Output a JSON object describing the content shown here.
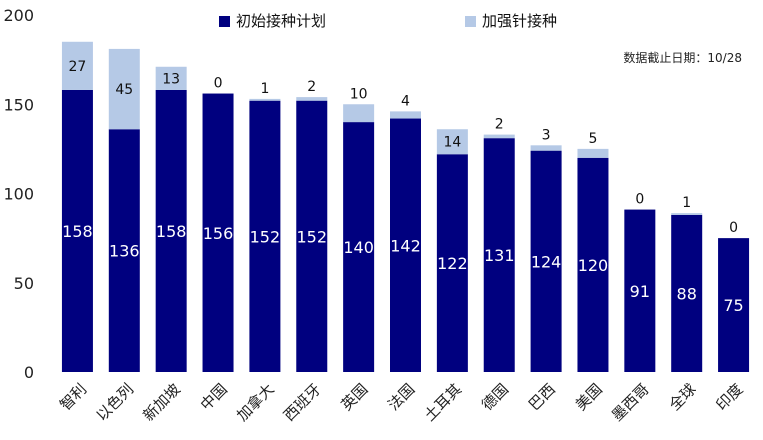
{
  "chart_data": {
    "type": "bar",
    "stacked": true,
    "title": "",
    "xlabel": "",
    "ylabel": "",
    "categories": [
      "智利",
      "以色列",
      "新加坡",
      "中国",
      "加拿大",
      "西班牙",
      "英国",
      "法国",
      "土耳其",
      "德国",
      "巴西",
      "美国",
      "墨西哥",
      "全球",
      "印度"
    ],
    "series": [
      {
        "name": "初始接种计划",
        "color": "#00007f",
        "values": [
          158,
          136,
          158,
          156,
          152,
          152,
          140,
          142,
          122,
          131,
          124,
          120,
          91,
          88,
          75
        ]
      },
      {
        "name": "加强针接种",
        "color": "#b5c9e6",
        "values": [
          27,
          45,
          13,
          0,
          1,
          2,
          10,
          4,
          14,
          2,
          3,
          5,
          0,
          1,
          0
        ]
      }
    ],
    "y_ticks": [
      0,
      50,
      100,
      150,
      200
    ],
    "ylim": [
      0,
      200
    ],
    "grid": false,
    "legend_position": "top",
    "note": "数据截止日期：10/28"
  }
}
